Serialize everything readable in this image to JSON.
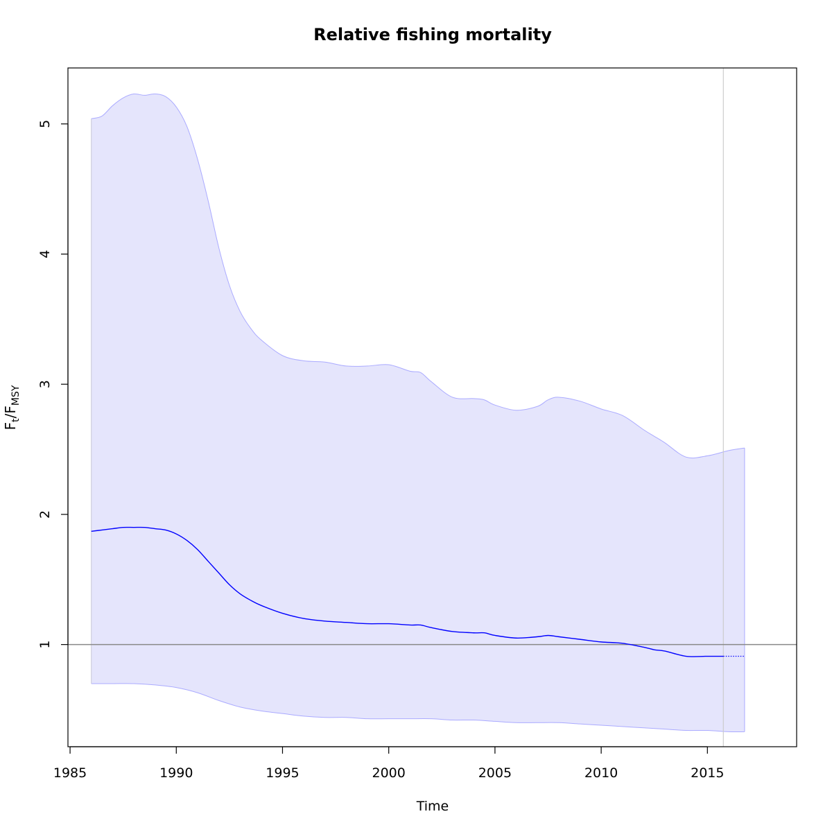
{
  "chart_data": {
    "type": "line",
    "title": "Relative fishing mortality",
    "xlabel": "Time",
    "ylabel": {
      "main_1": "F",
      "sub_1": "t",
      "sep": "/",
      "main_2": "F",
      "sub_2": "MSY"
    },
    "xlim": [
      1984.9,
      2019.2
    ],
    "ylim": [
      0.215,
      5.43
    ],
    "x_ticks": [
      1985,
      1990,
      1995,
      2000,
      2005,
      2010,
      2015
    ],
    "x_tick_labels": [
      "1985",
      "1990",
      "1995",
      "2000",
      "2005",
      "2010",
      "2015"
    ],
    "y_ticks": [
      1,
      2,
      3,
      4,
      5
    ],
    "y_tick_labels": [
      "1",
      "2",
      "3",
      "4",
      "5"
    ],
    "reference_line_y": 1,
    "vertical_line_x": 2015.75,
    "grid": false,
    "colors": {
      "estimate": "#0000ff",
      "band_fill": "#e5e5fc",
      "band_edge": "#aaaaff",
      "reference_line": "#888888",
      "vertical_line": "#cccccc"
    },
    "series": [
      {
        "role": "estimate",
        "x": [
          1986,
          1986.5,
          1987,
          1987.5,
          1988,
          1988.5,
          1989,
          1989.5,
          1990,
          1990.5,
          1991,
          1991.5,
          1992,
          1992.5,
          1993,
          1993.5,
          1994,
          1995,
          1996,
          1997,
          1998,
          1999,
          2000,
          2001,
          2001.5,
          2002,
          2003,
          2004,
          2004.5,
          2005,
          2006,
          2007,
          2007.5,
          2008,
          2009,
          2010,
          2011,
          2012,
          2012.5,
          2013,
          2014,
          2015,
          2015.75
        ],
        "y": [
          1.87,
          1.88,
          1.89,
          1.9,
          1.9,
          1.9,
          1.89,
          1.88,
          1.85,
          1.8,
          1.73,
          1.64,
          1.55,
          1.46,
          1.39,
          1.34,
          1.3,
          1.24,
          1.2,
          1.18,
          1.17,
          1.16,
          1.16,
          1.15,
          1.15,
          1.13,
          1.1,
          1.09,
          1.09,
          1.07,
          1.05,
          1.06,
          1.07,
          1.06,
          1.04,
          1.02,
          1.01,
          0.98,
          0.96,
          0.95,
          0.91,
          0.91,
          0.91
        ]
      },
      {
        "role": "prediction",
        "x": [
          2015.75,
          2016.75
        ],
        "y": [
          0.91,
          0.91
        ]
      },
      {
        "role": "upper_bound",
        "x": [
          1986,
          1986.5,
          1987,
          1987.5,
          1988,
          1988.5,
          1989,
          1989.5,
          1990,
          1990.5,
          1991,
          1991.5,
          1992,
          1992.5,
          1993,
          1993.5,
          1994,
          1995,
          1996,
          1997,
          1998,
          1999,
          2000,
          2001,
          2001.5,
          2002,
          2003,
          2004,
          2004.5,
          2005,
          2006,
          2007,
          2007.5,
          2008,
          2009,
          2010,
          2011,
          2012,
          2012.5,
          2013,
          2014,
          2015,
          2016,
          2016.75
        ],
        "y": [
          5.04,
          5.06,
          5.14,
          5.2,
          5.23,
          5.22,
          5.23,
          5.21,
          5.13,
          4.98,
          4.73,
          4.41,
          4.05,
          3.76,
          3.56,
          3.43,
          3.34,
          3.22,
          3.18,
          3.17,
          3.14,
          3.14,
          3.15,
          3.1,
          3.09,
          3.02,
          2.9,
          2.89,
          2.88,
          2.84,
          2.8,
          2.83,
          2.88,
          2.9,
          2.87,
          2.81,
          2.76,
          2.65,
          2.6,
          2.55,
          2.44,
          2.45,
          2.49,
          2.51
        ]
      },
      {
        "role": "lower_bound",
        "x": [
          1986,
          1987,
          1988,
          1989,
          1990,
          1991,
          1992,
          1993,
          1994,
          1995,
          1996,
          1997,
          1998,
          1999,
          2000,
          2001,
          2002,
          2003,
          2004,
          2005,
          2006,
          2007,
          2008,
          2009,
          2010,
          2011,
          2012,
          2013,
          2014,
          2015,
          2016,
          2016.75
        ],
        "y": [
          0.7,
          0.7,
          0.7,
          0.69,
          0.67,
          0.63,
          0.57,
          0.52,
          0.49,
          0.47,
          0.45,
          0.44,
          0.44,
          0.43,
          0.43,
          0.43,
          0.43,
          0.42,
          0.42,
          0.41,
          0.4,
          0.4,
          0.4,
          0.39,
          0.38,
          0.37,
          0.36,
          0.35,
          0.34,
          0.34,
          0.33,
          0.33
        ]
      }
    ]
  }
}
